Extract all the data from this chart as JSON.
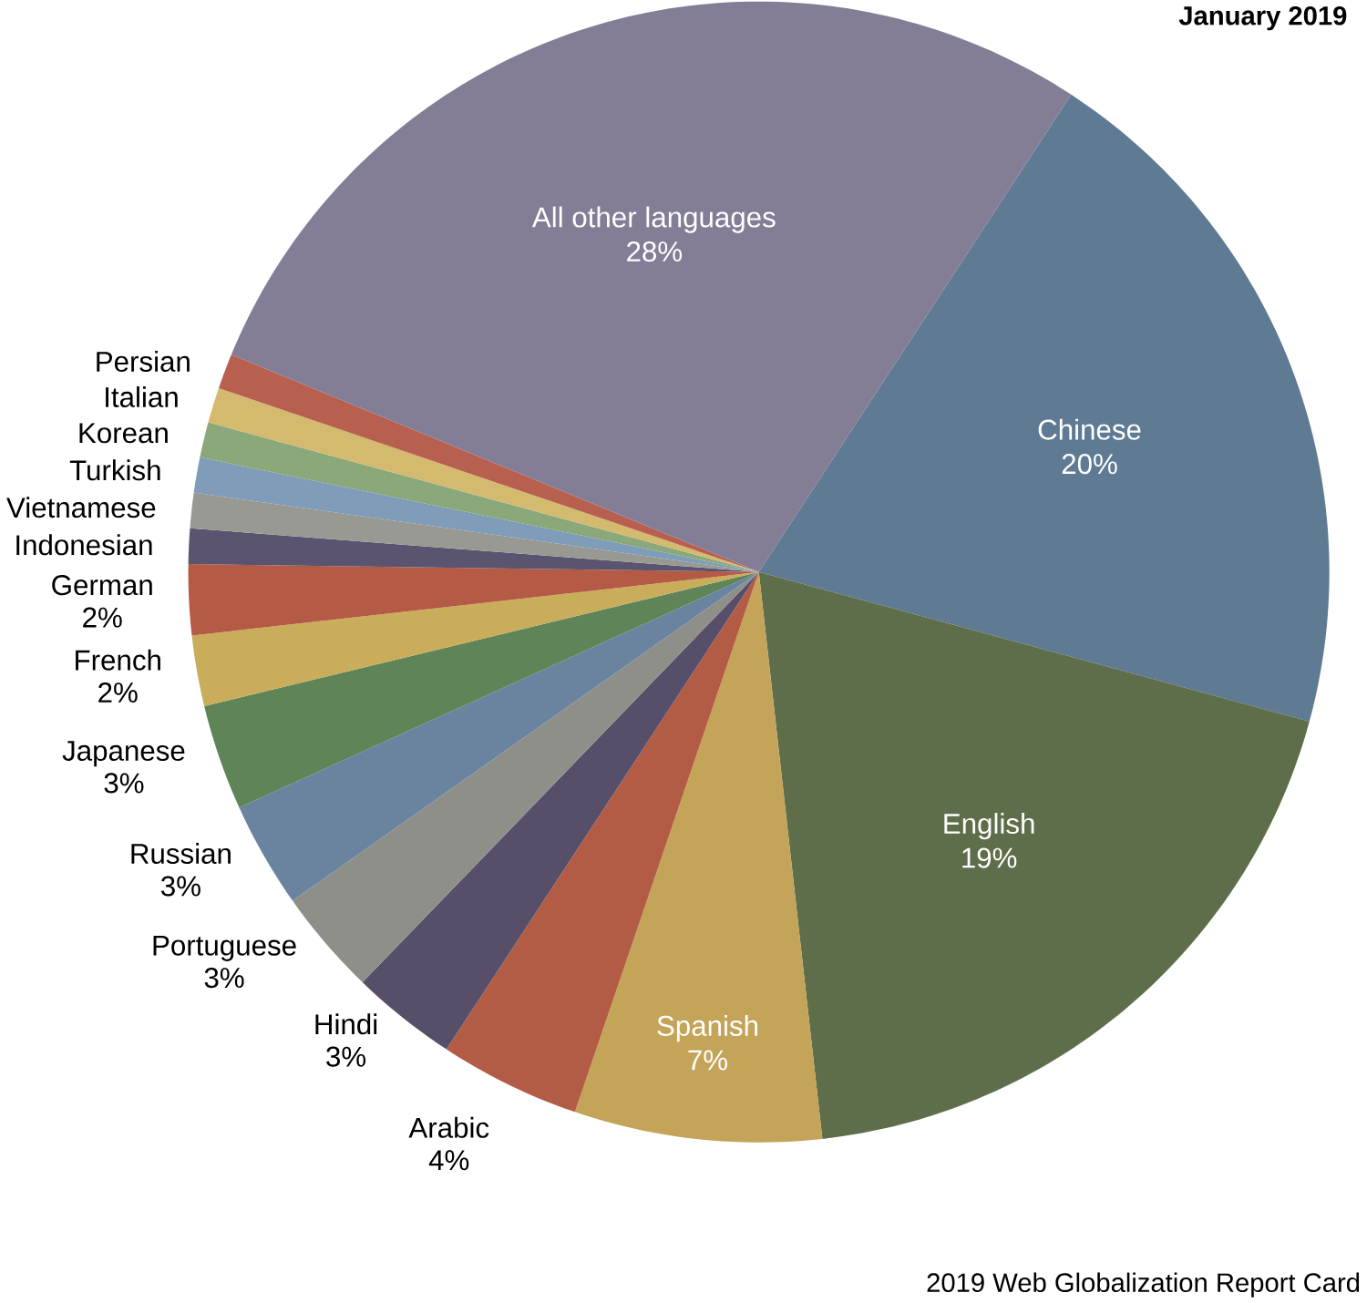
{
  "chart_data": {
    "type": "pie",
    "title": "January 2019",
    "categories": [
      "Chinese",
      "English",
      "Spanish",
      "Arabic",
      "Hindi",
      "Portuguese",
      "Russian",
      "Japanese",
      "French",
      "German",
      "Indonesian",
      "Vietnamese",
      "Turkish",
      "Korean",
      "Italian",
      "Persian",
      "All other languages"
    ],
    "values": [
      20,
      19,
      7,
      4,
      3,
      3,
      3,
      3,
      2,
      2,
      1,
      1,
      1,
      1,
      1,
      1,
      28
    ],
    "value_labels": [
      "20%",
      "19%",
      "7%",
      "4%",
      "3%",
      "3%",
      "3%",
      "3%",
      "2%",
      "2%",
      null,
      null,
      null,
      null,
      null,
      null,
      "28%"
    ],
    "colors": [
      "#5f7a93",
      "#5f6e4a",
      "#c4a458",
      "#b35c45",
      "#574f6a",
      "#8f8f8a",
      "#6a84a0",
      "#5e8458",
      "#c9ad5a",
      "#b45a45",
      "#5a5470",
      "#999994",
      "#7f9cb8",
      "#8aa87a",
      "#d4ba6e",
      "#b86050",
      "#847d96"
    ],
    "annotations": [
      "2019 Web Globalization Report Card"
    ]
  }
}
